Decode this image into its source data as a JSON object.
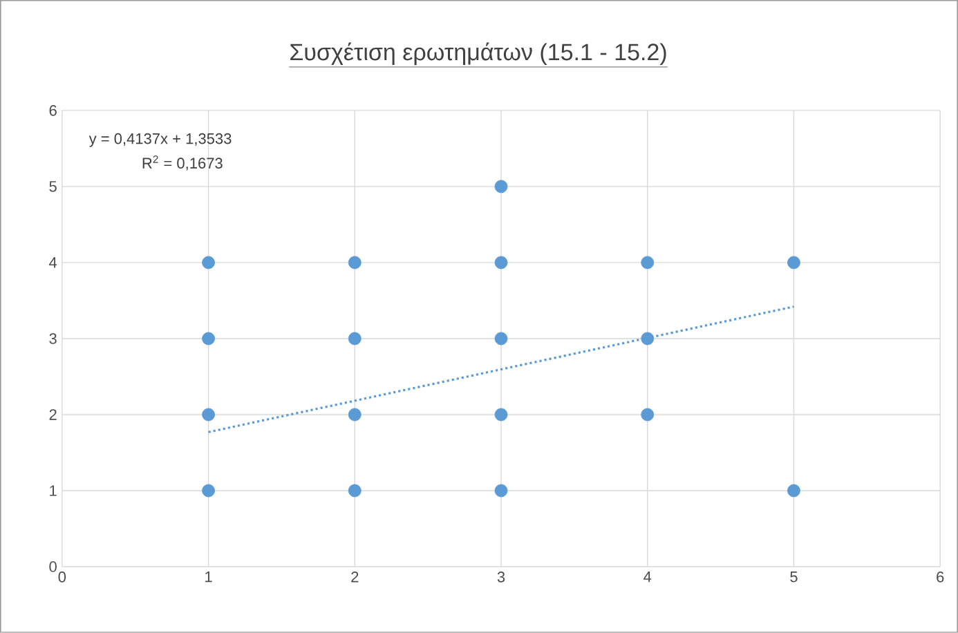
{
  "chart_data": {
    "type": "scatter",
    "title": "Συσχέτιση ερωτημάτων (15.1 - 15.2)",
    "xlim": [
      0,
      6
    ],
    "ylim": [
      0,
      6
    ],
    "xticks": [
      0,
      1,
      2,
      3,
      4,
      5,
      6
    ],
    "yticks": [
      0,
      1,
      2,
      3,
      4,
      5,
      6
    ],
    "grid": true,
    "annotations": [
      "y = 0,4137x + 1,3533",
      "R$^{2}$ = 0,1673"
    ],
    "series": [
      {
        "color": "#5b9bd5",
        "marker": "circle",
        "x": [
          1,
          1,
          1,
          1,
          2,
          2,
          2,
          2,
          3,
          3,
          3,
          3,
          3,
          4,
          4,
          4,
          5,
          5
        ],
        "values": [
          1,
          2,
          3,
          4,
          1,
          2,
          3,
          4,
          1,
          2,
          3,
          4,
          5,
          2,
          3,
          4,
          1,
          4
        ]
      },
      {
        "type": "line",
        "color": "#5b9bd5",
        "marker": "none",
        "line_style": "dotted",
        "x": [
          1,
          5
        ],
        "values": [
          1.77,
          3.42
        ]
      }
    ]
  }
}
